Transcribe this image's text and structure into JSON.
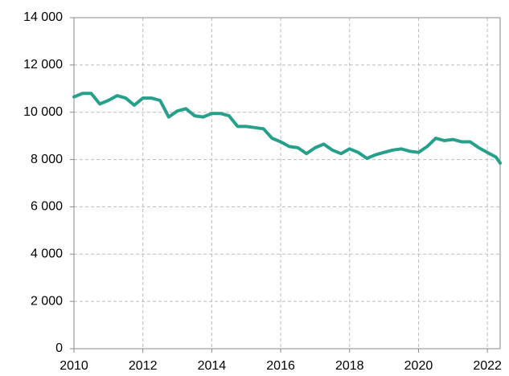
{
  "chart_data": {
    "type": "line",
    "x": [
      2010.0,
      2010.25,
      2010.5,
      2010.75,
      2011.0,
      2011.25,
      2011.5,
      2011.75,
      2012.0,
      2012.25,
      2012.5,
      2012.75,
      2013.0,
      2013.25,
      2013.5,
      2013.75,
      2014.0,
      2014.25,
      2014.5,
      2014.75,
      2015.0,
      2015.25,
      2015.5,
      2015.75,
      2016.0,
      2016.25,
      2016.5,
      2016.75,
      2017.0,
      2017.25,
      2017.5,
      2017.75,
      2018.0,
      2018.25,
      2018.5,
      2018.75,
      2019.0,
      2019.25,
      2019.5,
      2019.75,
      2020.0,
      2020.25,
      2020.5,
      2020.75,
      2021.0,
      2021.25,
      2021.5,
      2021.75,
      2022.0,
      2022.25,
      2022.37
    ],
    "series": [
      {
        "color": "#26a08a",
        "values": [
          10650,
          10800,
          10800,
          10350,
          10500,
          10700,
          10600,
          10300,
          10600,
          10600,
          10500,
          9800,
          10050,
          10150,
          9850,
          9800,
          9950,
          9950,
          9850,
          9400,
          9400,
          9350,
          9300,
          8900,
          8750,
          8550,
          8500,
          8250,
          8500,
          8650,
          8400,
          8250,
          8450,
          8300,
          8050,
          8200,
          8300,
          8400,
          8450,
          8350,
          8300,
          8550,
          8900,
          8800,
          8850,
          8750,
          8750,
          8500,
          8300,
          8100,
          7850
        ]
      }
    ],
    "xlim": [
      2010,
      2022.37
    ],
    "xticks": [
      2010,
      2012,
      2014,
      2016,
      2018,
      2020,
      2022
    ],
    "ylim": [
      0,
      14000
    ],
    "yticks": [
      0,
      {
        "value": 2000,
        "label": "2 000"
      },
      {
        "value": 4000,
        "label": "4 000"
      },
      {
        "value": 6000,
        "label": "6 000"
      },
      {
        "value": 8000,
        "label": "8 000"
      },
      {
        "value": 10000,
        "label": "10 000"
      },
      {
        "value": 12000,
        "label": "12 000"
      },
      {
        "value": 14000,
        "label": "14 000"
      }
    ],
    "grid": true
  }
}
